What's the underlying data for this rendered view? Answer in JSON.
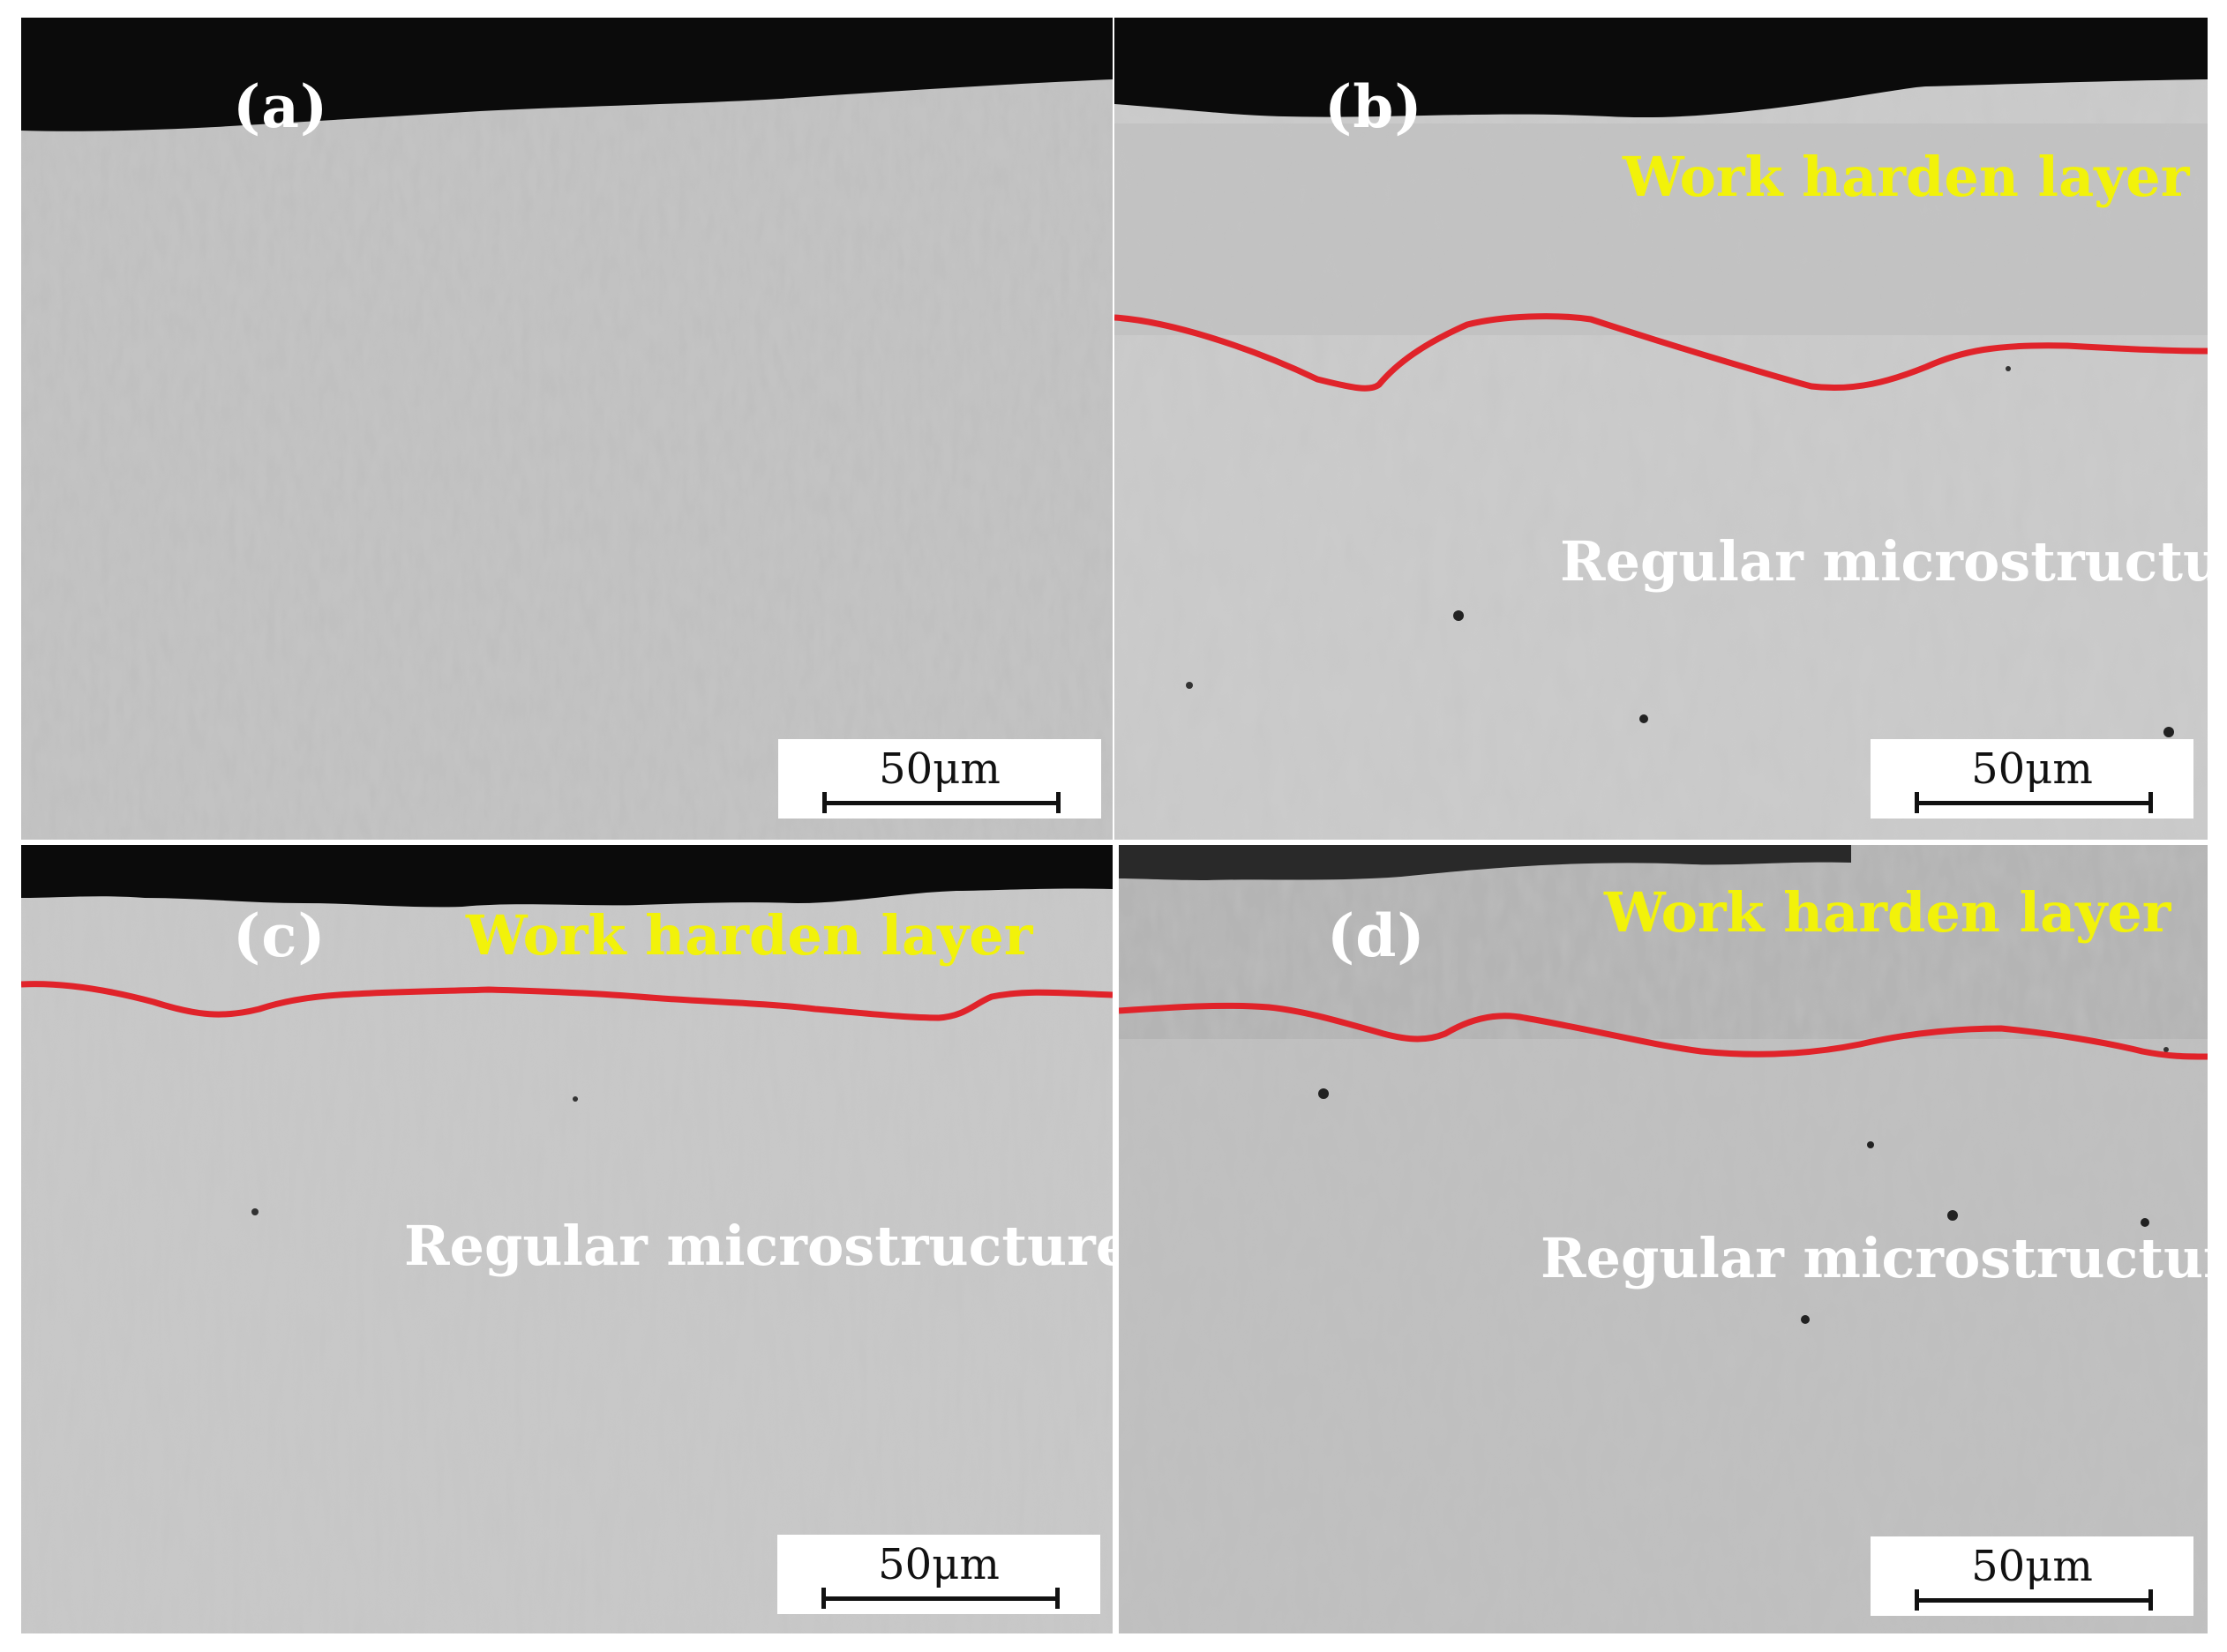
{
  "panels": [
    {
      "id": "a",
      "label": "(a)",
      "annotation_top": "",
      "annotation_bottom": "",
      "scalebar": "50μm"
    },
    {
      "id": "b",
      "label": "(b)",
      "annotation_top": "Work harden layer",
      "annotation_bottom": "Regular microstructure",
      "scalebar": "50μm"
    },
    {
      "id": "c",
      "label": "(c)",
      "annotation_top": "Work harden layer",
      "annotation_bottom": "Regular microstructure",
      "scalebar": "50μm"
    },
    {
      "id": "d",
      "label": "(d)",
      "annotation_top": "Work harden layer",
      "annotation_bottom": "Regular microstructure",
      "scalebar": "50μm"
    }
  ],
  "colors": {
    "surface": "#0b0b0b",
    "micrograph": "#c6c6c6",
    "boundary_line": "#e0232a",
    "top_annotation": "#f2f20a",
    "bottom_annotation": "#ffffff"
  }
}
